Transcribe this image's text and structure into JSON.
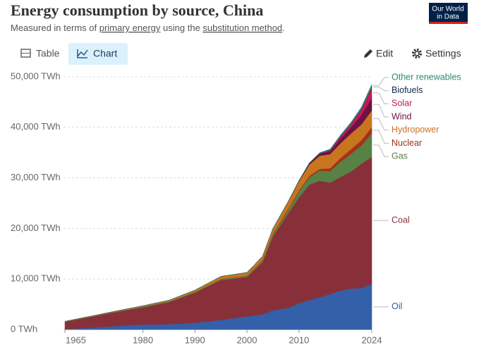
{
  "header": {
    "title": "Energy consumption by source, China",
    "subtitle": [
      "Measured in terms of ",
      "primary energy",
      " using the ",
      "substitution method",
      "."
    ],
    "logo": [
      "Our World",
      "in Data"
    ]
  },
  "toolbar": {
    "tabs": [
      "Table",
      "Chart"
    ],
    "buttons": [
      "Edit",
      "Settings"
    ]
  },
  "chart_data": {
    "type": "stacked-area",
    "x": [
      1965,
      1970,
      1975,
      1980,
      1985,
      1990,
      1995,
      2000,
      2003,
      2005,
      2008,
      2010,
      2012,
      2014,
      2016,
      2018,
      2020,
      2022,
      2024
    ],
    "xlim": [
      1965,
      2024
    ],
    "xticks": [
      1965,
      1980,
      1990,
      2000,
      2010,
      2024
    ],
    "ylim": [
      0,
      50000
    ],
    "yticks": [
      {
        "value": 0,
        "label": "0 TWh"
      },
      {
        "value": 10000,
        "label": "10,000 TWh"
      },
      {
        "value": 20000,
        "label": "20,000 TWh"
      },
      {
        "value": 30000,
        "label": "30,000 TWh"
      },
      {
        "value": 40000,
        "label": "40,000 TWh"
      },
      {
        "value": 50000,
        "label": "50,000 TWh"
      }
    ],
    "grid": true,
    "series": [
      {
        "name": "Oil",
        "color": "#3360a9",
        "values": [
          130,
          350,
          700,
          1000,
          1050,
          1350,
          1900,
          2600,
          3000,
          3800,
          4300,
          5200,
          5800,
          6400,
          7000,
          7700,
          8100,
          8200,
          9000
        ]
      },
      {
        "name": "Coal",
        "color": "#883039",
        "values": [
          1410,
          2160,
          2820,
          3400,
          4380,
          5960,
          7900,
          7800,
          10300,
          14650,
          18770,
          20910,
          22840,
          23030,
          22040,
          22480,
          23150,
          24580,
          25140
        ]
      },
      {
        "name": "Gas",
        "color": "#578145",
        "values": [
          30,
          50,
          50,
          150,
          150,
          160,
          180,
          250,
          300,
          400,
          700,
          1200,
          1500,
          2000,
          2300,
          3000,
          3500,
          3600,
          4700
        ]
      },
      {
        "name": "Nuclear",
        "color": "#a2331b",
        "values": [
          0,
          0,
          0,
          0,
          0,
          0,
          35,
          40,
          120,
          150,
          190,
          200,
          280,
          350,
          560,
          770,
          920,
          1070,
          1200
        ]
      },
      {
        "name": "Hydropower",
        "color": "#c9741f",
        "values": [
          60,
          90,
          130,
          150,
          220,
          330,
          500,
          600,
          780,
          1000,
          1450,
          1800,
          2200,
          2600,
          2800,
          2900,
          3100,
          3100,
          3300
        ]
      },
      {
        "name": "Wind",
        "color": "#6d1043",
        "values": [
          0,
          0,
          0,
          0,
          0,
          0,
          0,
          0,
          0,
          0,
          40,
          110,
          250,
          400,
          600,
          900,
          1200,
          1900,
          2400
        ]
      },
      {
        "name": "Solar",
        "color": "#c4185a",
        "values": [
          0,
          0,
          0,
          0,
          0,
          0,
          0,
          0,
          0,
          0,
          0,
          0,
          10,
          60,
          180,
          450,
          660,
          1100,
          2200
        ]
      },
      {
        "name": "Biofuels",
        "color": "#0e2a4a",
        "values": [
          0,
          0,
          0,
          0,
          0,
          0,
          0,
          0,
          0,
          0,
          20,
          30,
          40,
          40,
          40,
          50,
          50,
          50,
          60
        ]
      },
      {
        "name": "Other renewables",
        "color": "#2a8a76",
        "values": [
          0,
          0,
          0,
          0,
          0,
          0,
          0,
          0,
          0,
          0,
          30,
          50,
          80,
          120,
          180,
          250,
          320,
          400,
          500
        ]
      }
    ]
  }
}
